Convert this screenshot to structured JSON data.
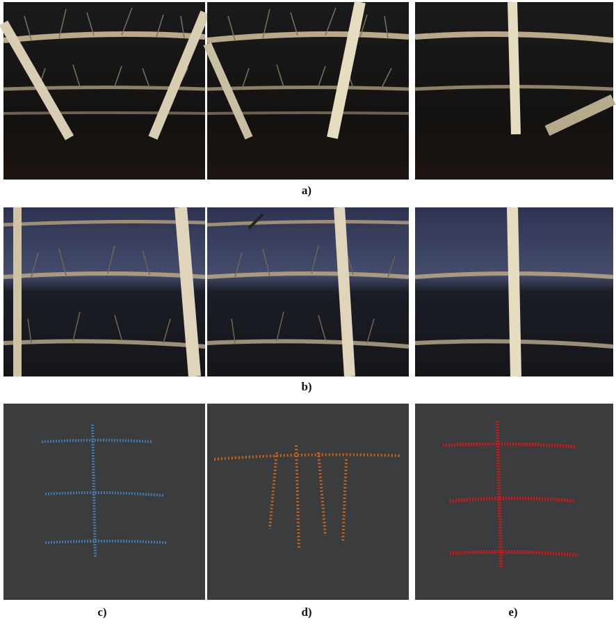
{
  "figure": {
    "row_labels": [
      "a)",
      "b)"
    ],
    "panel_labels": [
      "c)",
      "d)",
      "e)"
    ]
  }
}
